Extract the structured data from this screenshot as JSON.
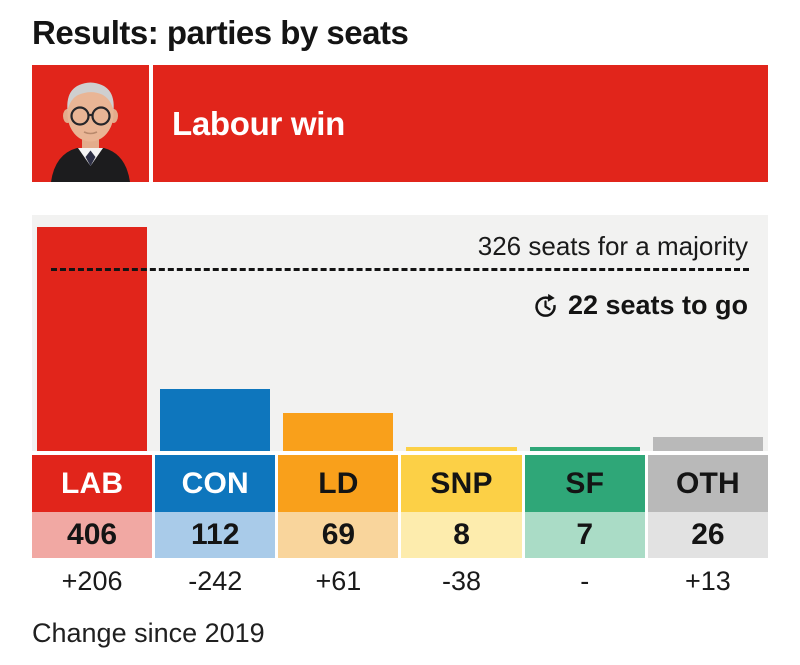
{
  "page": {
    "title": "Results: parties by seats"
  },
  "banner": {
    "headline": "Labour win",
    "background_color": "#e1251b",
    "photo": "keir-starmer-portrait"
  },
  "chart_data": {
    "type": "bar",
    "title": "Results: parties by seats",
    "categories": [
      "LAB",
      "CON",
      "LD",
      "SNP",
      "SF",
      "OTH"
    ],
    "values": [
      406,
      112,
      69,
      8,
      7,
      26
    ],
    "changes": [
      "+206",
      "-242",
      "+61",
      "-38",
      "-",
      "+13"
    ],
    "ylim": [
      0,
      430
    ],
    "grid": false,
    "legend": "none",
    "panel_background": "#f2f2f1",
    "majority": {
      "label": "326 seats for a majority",
      "value": 326
    },
    "seats_to_go": {
      "label": "22 seats to go",
      "value": 22,
      "icon": "history-clock-icon"
    },
    "caption": "Change since 2019",
    "parties": [
      {
        "abbr": "LAB",
        "seats": 406,
        "change": "+206",
        "color": "#e1251b",
        "tint": "#f1a8a3",
        "label_text_color": "#ffffff"
      },
      {
        "abbr": "CON",
        "seats": 112,
        "change": "-242",
        "color": "#0e76bd",
        "tint": "#a9cbe9",
        "label_text_color": "#ffffff"
      },
      {
        "abbr": "LD",
        "seats": 69,
        "change": "+61",
        "color": "#f9a01b",
        "tint": "#f9d59c",
        "label_text_color": "#141414"
      },
      {
        "abbr": "SNP",
        "seats": 8,
        "change": "-38",
        "color": "#fcd046",
        "tint": "#fdecad",
        "label_text_color": "#141414"
      },
      {
        "abbr": "SF",
        "seats": 7,
        "change": "-",
        "color": "#2fa778",
        "tint": "#aadcc6",
        "label_text_color": "#141414"
      },
      {
        "abbr": "OTH",
        "seats": 26,
        "change": "+13",
        "color": "#b9b9b9",
        "tint": "#e2e2e2",
        "label_text_color": "#141414"
      }
    ]
  }
}
